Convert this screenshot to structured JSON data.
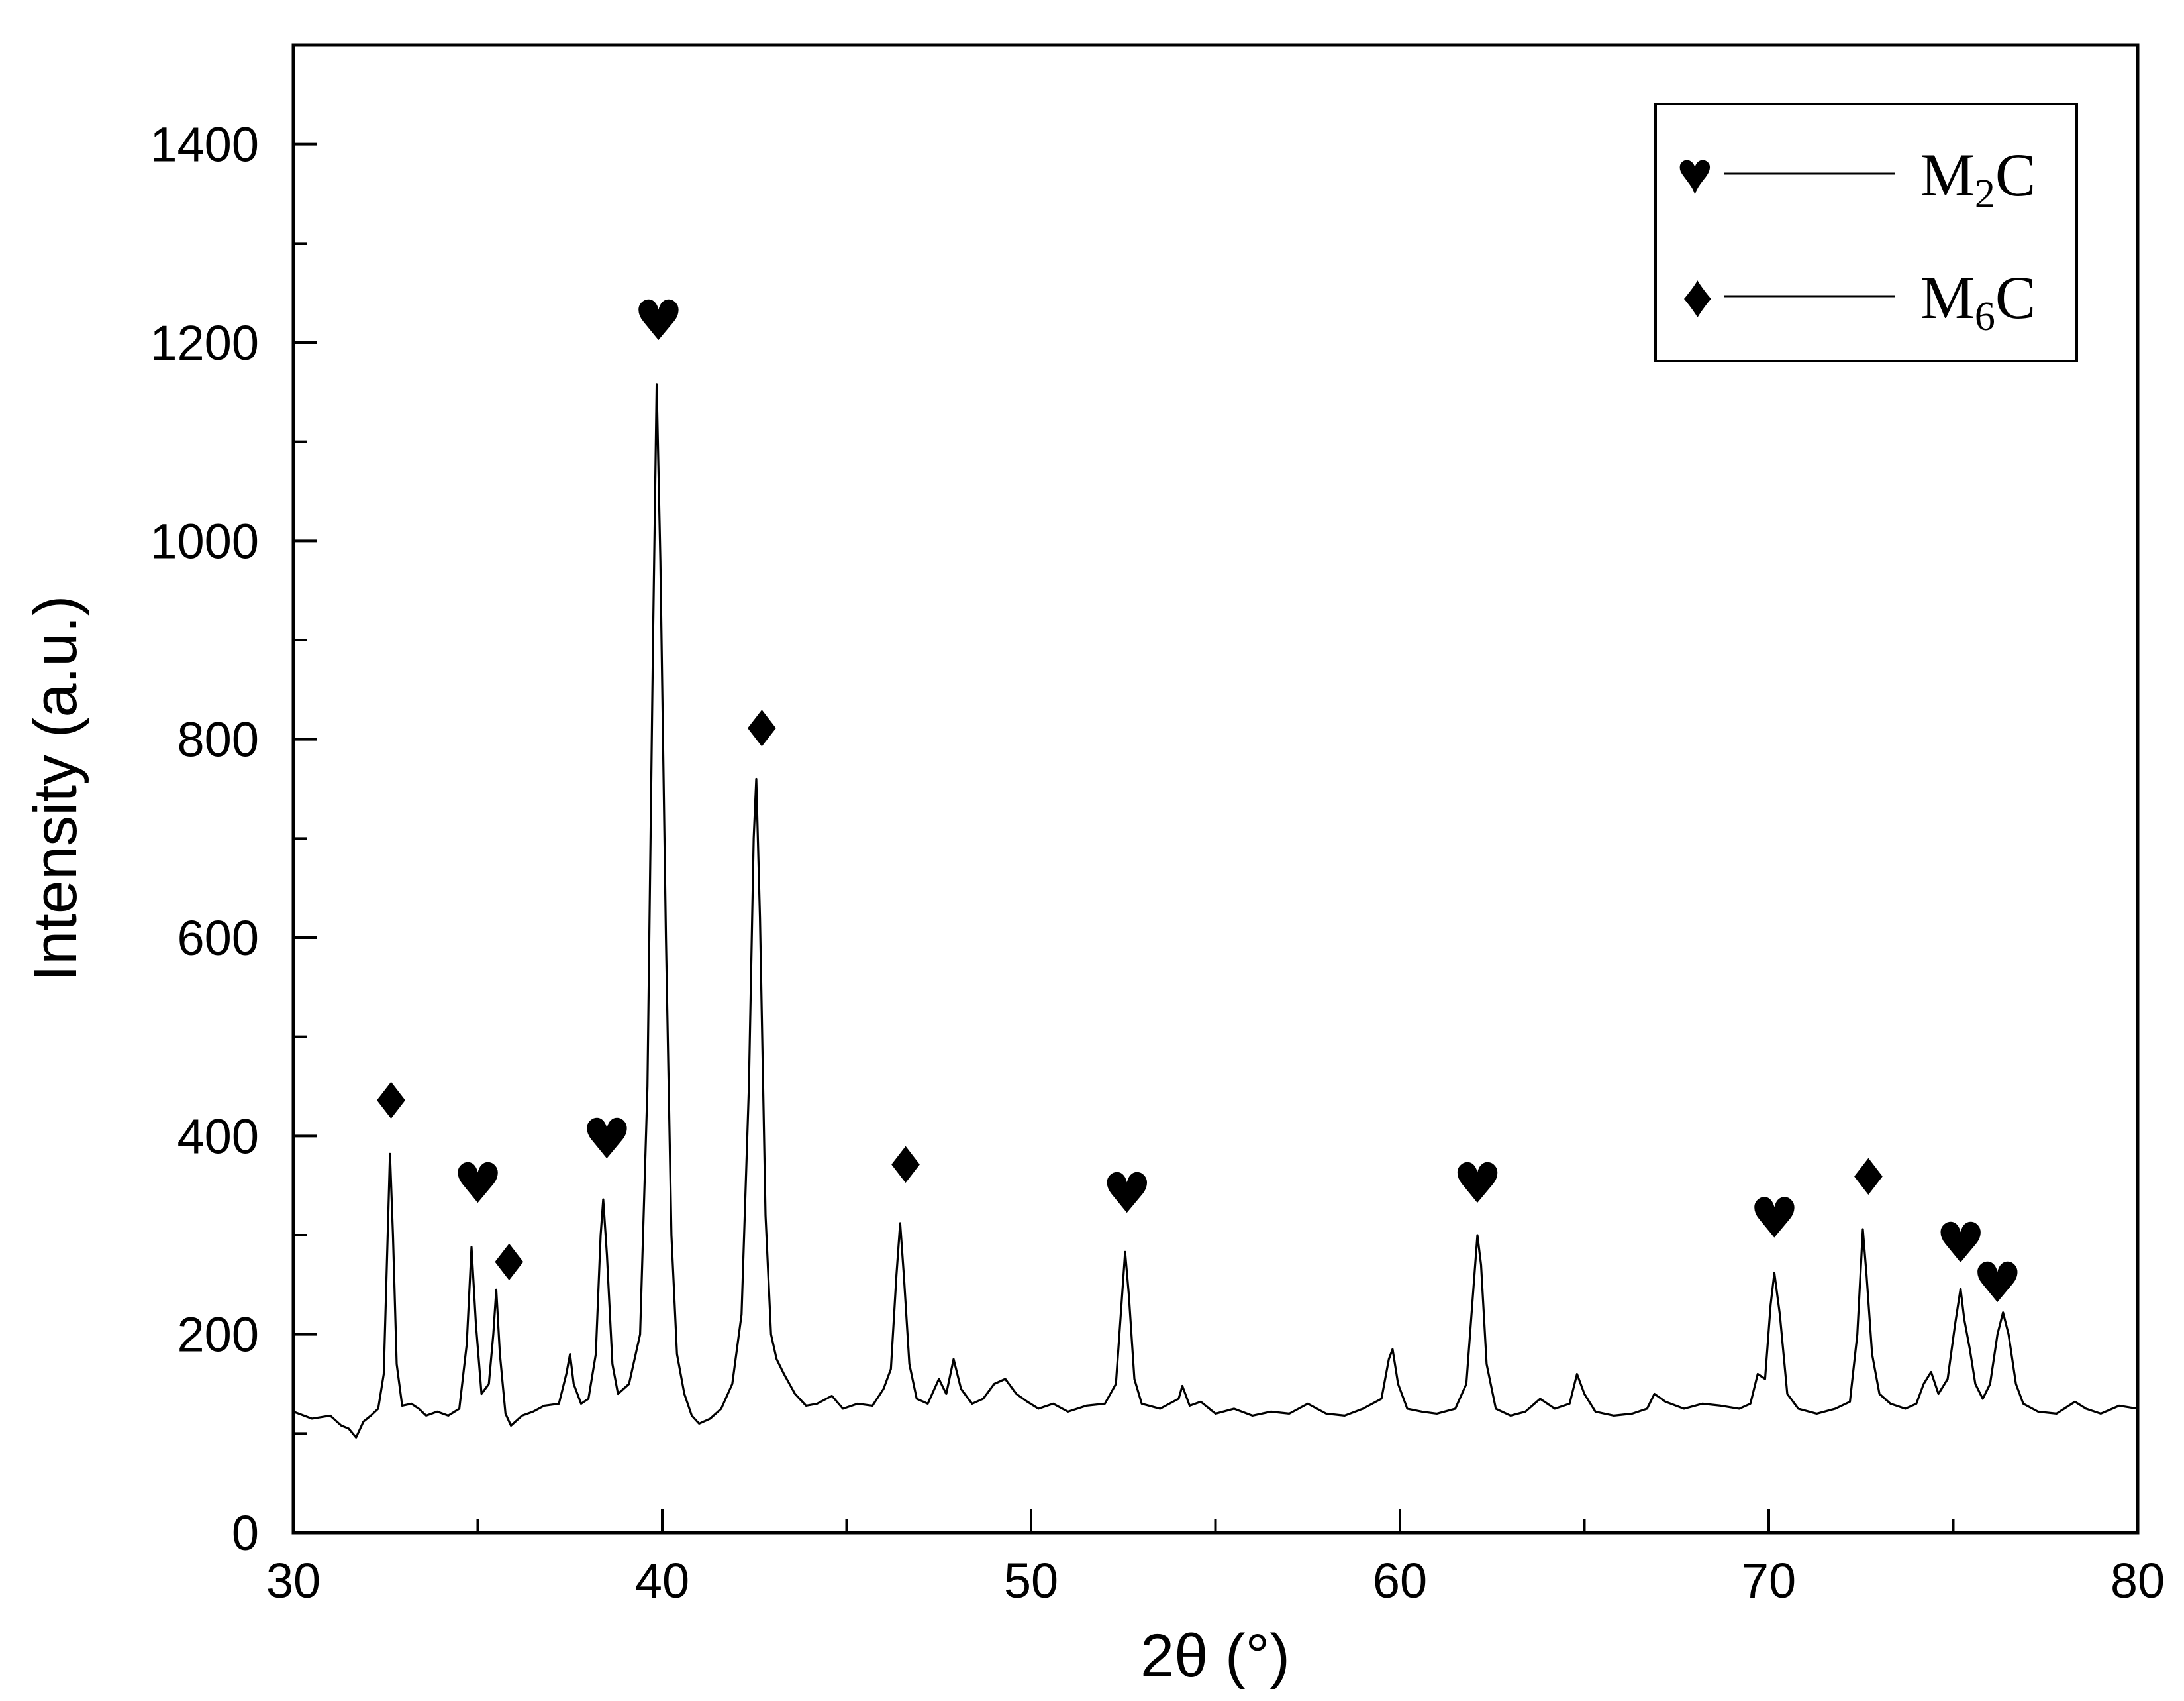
{
  "chart_data": {
    "type": "line",
    "xlabel": "2θ (°)",
    "ylabel": "Intensity (a.u.)",
    "xlim": [
      30,
      80
    ],
    "ylim": [
      0,
      1500
    ],
    "xticks": [
      30,
      40,
      50,
      60,
      70,
      80
    ],
    "yticks": [
      0,
      200,
      400,
      600,
      800,
      1000,
      1200,
      1400
    ],
    "x_minor_step": 5,
    "y_minor_step": 100,
    "grid": false,
    "legend_position": "top-right",
    "legend": [
      {
        "symbol": "♥",
        "base": "M",
        "sub": "2",
        "tail": "C"
      },
      {
        "symbol": "♦",
        "base": "M",
        "sub": "6",
        "tail": "C"
      }
    ],
    "series": [
      {
        "points": [
          [
            30.0,
            122
          ],
          [
            30.5,
            115
          ],
          [
            31.0,
            118
          ],
          [
            31.3,
            108
          ],
          [
            31.5,
            105
          ],
          [
            31.7,
            96
          ],
          [
            31.9,
            112
          ],
          [
            32.1,
            118
          ],
          [
            32.3,
            125
          ],
          [
            32.45,
            160
          ],
          [
            32.55,
            290
          ],
          [
            32.62,
            382
          ],
          [
            32.7,
            300
          ],
          [
            32.8,
            170
          ],
          [
            32.95,
            128
          ],
          [
            33.2,
            130
          ],
          [
            33.4,
            125
          ],
          [
            33.6,
            118
          ],
          [
            33.9,
            122
          ],
          [
            34.2,
            118
          ],
          [
            34.5,
            125
          ],
          [
            34.7,
            190
          ],
          [
            34.83,
            288
          ],
          [
            34.95,
            210
          ],
          [
            35.1,
            140
          ],
          [
            35.3,
            150
          ],
          [
            35.42,
            200
          ],
          [
            35.5,
            245
          ],
          [
            35.6,
            180
          ],
          [
            35.75,
            120
          ],
          [
            35.9,
            108
          ],
          [
            36.2,
            118
          ],
          [
            36.5,
            122
          ],
          [
            36.8,
            128
          ],
          [
            37.2,
            130
          ],
          [
            37.4,
            160
          ],
          [
            37.5,
            180
          ],
          [
            37.6,
            150
          ],
          [
            37.8,
            130
          ],
          [
            38.0,
            135
          ],
          [
            38.2,
            180
          ],
          [
            38.33,
            300
          ],
          [
            38.4,
            336
          ],
          [
            38.5,
            280
          ],
          [
            38.65,
            170
          ],
          [
            38.8,
            140
          ],
          [
            39.1,
            150
          ],
          [
            39.4,
            200
          ],
          [
            39.6,
            450
          ],
          [
            39.75,
            900
          ],
          [
            39.85,
            1158
          ],
          [
            39.95,
            980
          ],
          [
            40.1,
            600
          ],
          [
            40.25,
            300
          ],
          [
            40.4,
            180
          ],
          [
            40.6,
            140
          ],
          [
            40.8,
            118
          ],
          [
            41.0,
            110
          ],
          [
            41.3,
            115
          ],
          [
            41.6,
            125
          ],
          [
            41.9,
            150
          ],
          [
            42.15,
            220
          ],
          [
            42.35,
            450
          ],
          [
            42.48,
            700
          ],
          [
            42.55,
            760
          ],
          [
            42.65,
            620
          ],
          [
            42.8,
            320
          ],
          [
            42.95,
            200
          ],
          [
            43.1,
            175
          ],
          [
            43.3,
            160
          ],
          [
            43.6,
            140
          ],
          [
            43.9,
            128
          ],
          [
            44.2,
            130
          ],
          [
            44.6,
            138
          ],
          [
            44.9,
            125
          ],
          [
            45.3,
            130
          ],
          [
            45.7,
            128
          ],
          [
            46.0,
            145
          ],
          [
            46.2,
            165
          ],
          [
            46.35,
            260
          ],
          [
            46.45,
            312
          ],
          [
            46.55,
            260
          ],
          [
            46.7,
            170
          ],
          [
            46.9,
            135
          ],
          [
            47.2,
            130
          ],
          [
            47.5,
            155
          ],
          [
            47.7,
            140
          ],
          [
            47.9,
            175
          ],
          [
            48.1,
            145
          ],
          [
            48.4,
            130
          ],
          [
            48.7,
            135
          ],
          [
            49.0,
            150
          ],
          [
            49.3,
            155
          ],
          [
            49.6,
            140
          ],
          [
            49.9,
            132
          ],
          [
            50.2,
            125
          ],
          [
            50.6,
            130
          ],
          [
            51.0,
            122
          ],
          [
            51.5,
            128
          ],
          [
            52.0,
            130
          ],
          [
            52.3,
            150
          ],
          [
            52.45,
            230
          ],
          [
            52.55,
            283
          ],
          [
            52.65,
            240
          ],
          [
            52.8,
            155
          ],
          [
            53.0,
            130
          ],
          [
            53.5,
            125
          ],
          [
            54.0,
            135
          ],
          [
            54.1,
            148
          ],
          [
            54.3,
            128
          ],
          [
            54.6,
            132
          ],
          [
            55.0,
            120
          ],
          [
            55.5,
            125
          ],
          [
            56.0,
            118
          ],
          [
            56.5,
            122
          ],
          [
            57.0,
            120
          ],
          [
            57.5,
            130
          ],
          [
            58.0,
            120
          ],
          [
            58.5,
            118
          ],
          [
            59.0,
            125
          ],
          [
            59.5,
            135
          ],
          [
            59.7,
            175
          ],
          [
            59.8,
            185
          ],
          [
            59.95,
            150
          ],
          [
            60.2,
            125
          ],
          [
            60.6,
            122
          ],
          [
            61.0,
            120
          ],
          [
            61.5,
            125
          ],
          [
            61.8,
            150
          ],
          [
            62.0,
            250
          ],
          [
            62.1,
            300
          ],
          [
            62.2,
            270
          ],
          [
            62.35,
            170
          ],
          [
            62.6,
            125
          ],
          [
            63.0,
            118
          ],
          [
            63.4,
            122
          ],
          [
            63.8,
            135
          ],
          [
            64.2,
            125
          ],
          [
            64.6,
            130
          ],
          [
            64.8,
            160
          ],
          [
            65.0,
            140
          ],
          [
            65.3,
            122
          ],
          [
            65.8,
            118
          ],
          [
            66.3,
            120
          ],
          [
            66.7,
            125
          ],
          [
            66.9,
            140
          ],
          [
            67.2,
            132
          ],
          [
            67.7,
            125
          ],
          [
            68.2,
            130
          ],
          [
            68.7,
            128
          ],
          [
            69.2,
            125
          ],
          [
            69.5,
            130
          ],
          [
            69.7,
            160
          ],
          [
            69.9,
            155
          ],
          [
            70.05,
            230
          ],
          [
            70.15,
            262
          ],
          [
            70.3,
            220
          ],
          [
            70.5,
            140
          ],
          [
            70.8,
            125
          ],
          [
            71.3,
            120
          ],
          [
            71.8,
            125
          ],
          [
            72.2,
            132
          ],
          [
            72.4,
            200
          ],
          [
            72.55,
            306
          ],
          [
            72.65,
            260
          ],
          [
            72.8,
            180
          ],
          [
            73.0,
            140
          ],
          [
            73.3,
            130
          ],
          [
            73.7,
            125
          ],
          [
            74.0,
            130
          ],
          [
            74.2,
            150
          ],
          [
            74.4,
            162
          ],
          [
            74.6,
            140
          ],
          [
            74.85,
            155
          ],
          [
            75.05,
            210
          ],
          [
            75.2,
            246
          ],
          [
            75.3,
            215
          ],
          [
            75.45,
            185
          ],
          [
            75.6,
            150
          ],
          [
            75.8,
            135
          ],
          [
            76.0,
            150
          ],
          [
            76.2,
            200
          ],
          [
            76.35,
            222
          ],
          [
            76.5,
            200
          ],
          [
            76.7,
            150
          ],
          [
            76.9,
            130
          ],
          [
            77.3,
            122
          ],
          [
            77.8,
            120
          ],
          [
            78.3,
            132
          ],
          [
            78.6,
            125
          ],
          [
            79.0,
            120
          ],
          [
            79.5,
            128
          ],
          [
            80.0,
            125
          ]
        ]
      }
    ],
    "markers": [
      {
        "x": 32.65,
        "y": 435,
        "symbol": "♦"
      },
      {
        "x": 35.0,
        "y": 350,
        "symbol": "♥"
      },
      {
        "x": 35.85,
        "y": 272,
        "symbol": "♦"
      },
      {
        "x": 38.5,
        "y": 395,
        "symbol": "♥"
      },
      {
        "x": 39.9,
        "y": 1220,
        "symbol": "♥"
      },
      {
        "x": 42.7,
        "y": 810,
        "symbol": "♦"
      },
      {
        "x": 46.6,
        "y": 370,
        "symbol": "♦"
      },
      {
        "x": 52.6,
        "y": 340,
        "symbol": "♥"
      },
      {
        "x": 62.1,
        "y": 350,
        "symbol": "♥"
      },
      {
        "x": 70.15,
        "y": 315,
        "symbol": "♥"
      },
      {
        "x": 72.7,
        "y": 358,
        "symbol": "♦"
      },
      {
        "x": 75.2,
        "y": 290,
        "symbol": "♥"
      },
      {
        "x": 76.2,
        "y": 250,
        "symbol": "♥"
      }
    ]
  }
}
